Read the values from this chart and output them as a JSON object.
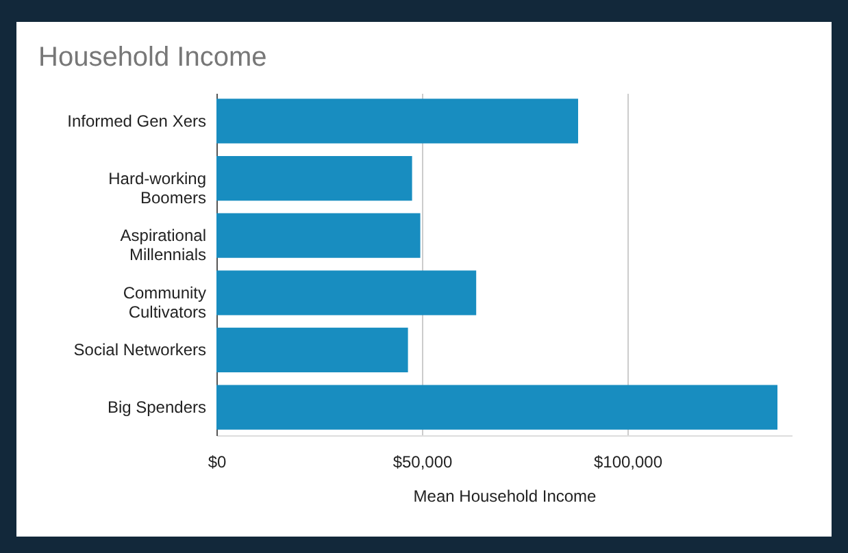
{
  "chart_data": {
    "type": "bar",
    "orientation": "horizontal",
    "title": "Household Income",
    "xlabel": "Mean Household Income",
    "categories": [
      "Informed Gen Xers",
      "Hard-working Boomers",
      "Aspirational Millennials",
      "Community Cultivators",
      "Social Networkers",
      "Big Spenders"
    ],
    "values": [
      88000,
      47600,
      49600,
      63200,
      46600,
      136500
    ],
    "color": "#188dc0",
    "xlim": [
      0,
      140000
    ],
    "xticks": [
      {
        "value": 0,
        "label": "$0"
      },
      {
        "value": 50000,
        "label": "$50,000"
      },
      {
        "value": 100000,
        "label": "$100,000"
      }
    ],
    "grid": "x"
  }
}
